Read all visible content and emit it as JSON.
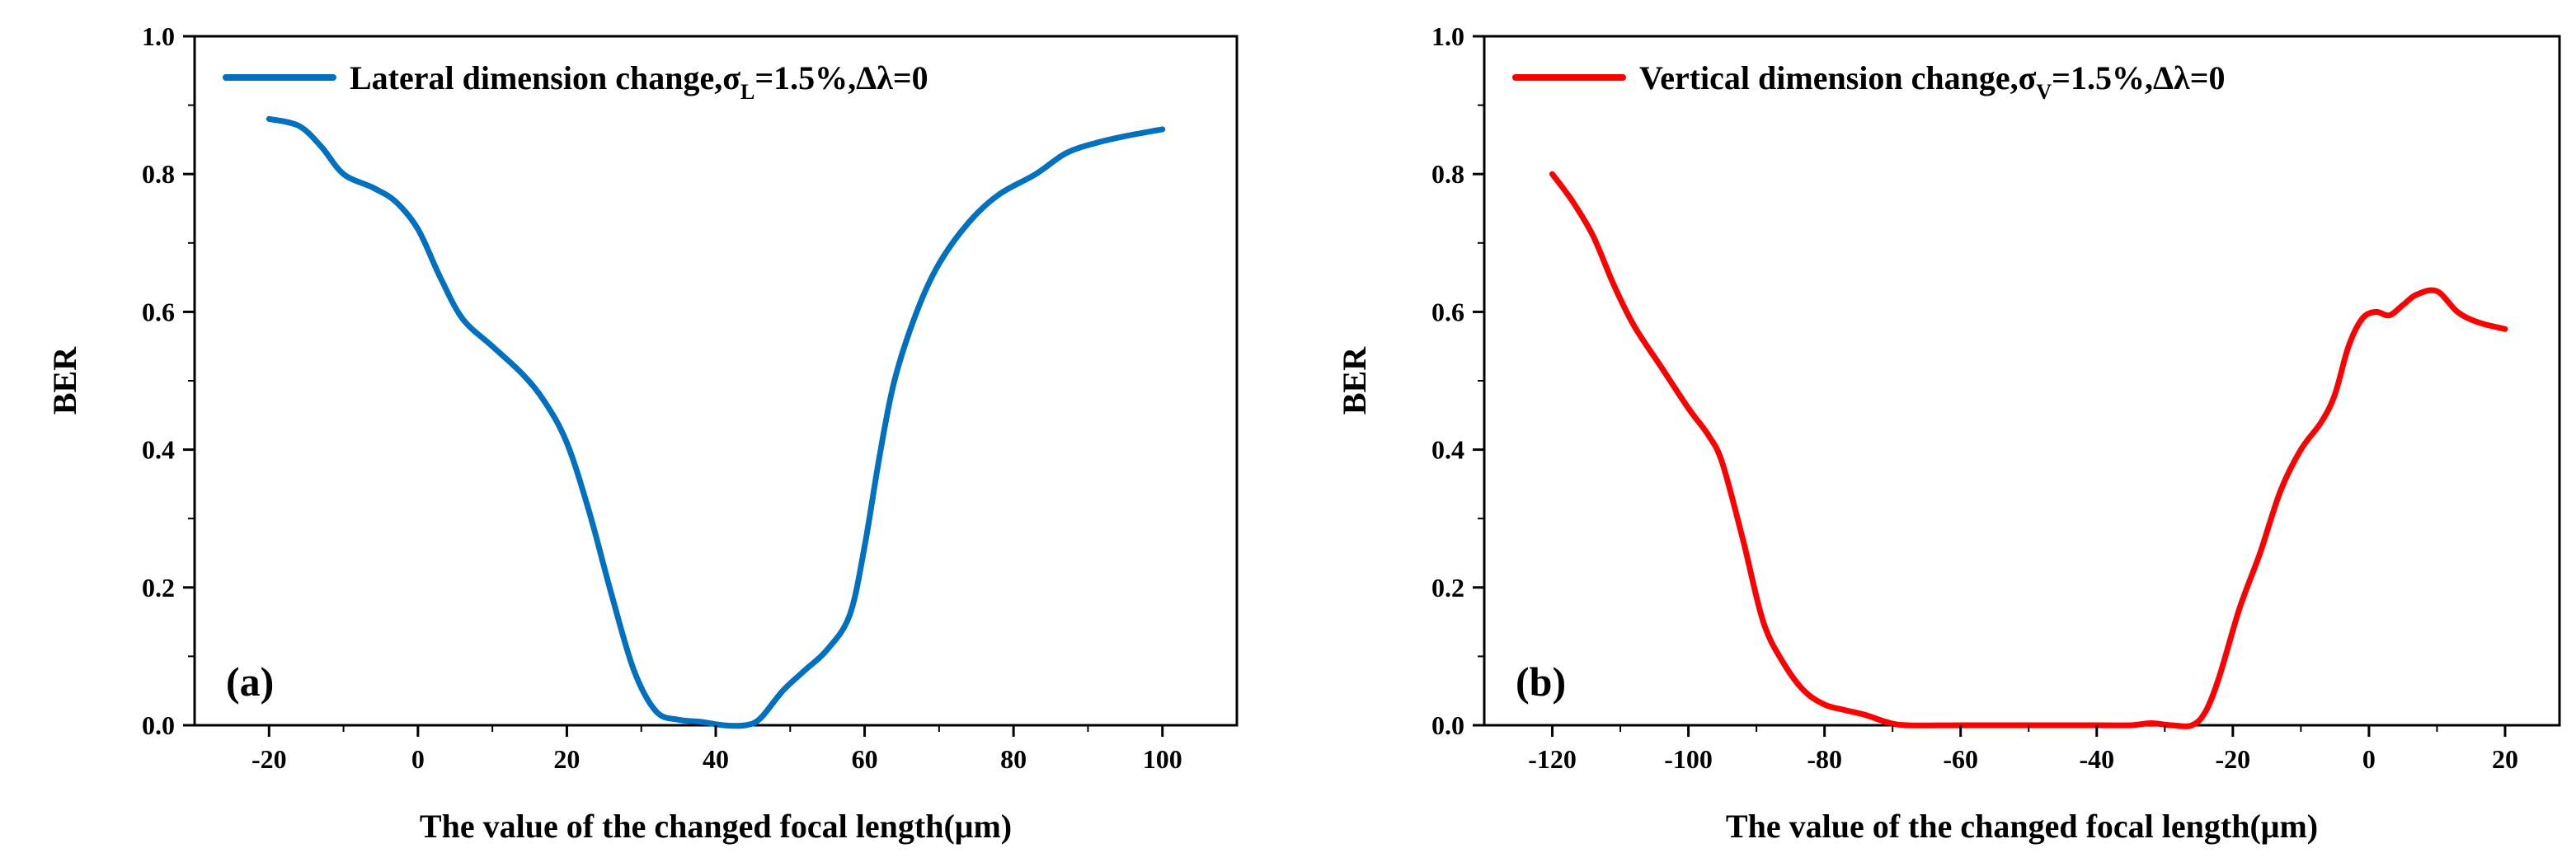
{
  "chart_data": [
    {
      "type": "line",
      "panel_label": "(a)",
      "xlabel": "The value of the changed focal length(μm)",
      "ylabel": "BER",
      "xlim": [
        -30,
        110
      ],
      "ylim": [
        0,
        1.0
      ],
      "xticks": [
        "-20",
        "0",
        "20",
        "40",
        "60",
        "80",
        "100"
      ],
      "yticks": [
        "0.0",
        "0.2",
        "0.4",
        "0.6",
        "0.8",
        "1.0"
      ],
      "grid": false,
      "legend_position": "top",
      "legend": {
        "prefix": "Lateral dimension change,σ",
        "sub": "L",
        "suffix": "=1.5%,Δλ=0"
      },
      "series": [
        {
          "name": "Lateral dimension change,σL=1.5%,Δλ=0",
          "color": "#0070c0",
          "x": [
            -20,
            -16,
            -13,
            -10,
            -6,
            -3,
            0,
            3,
            6,
            10,
            14,
            17,
            20,
            23,
            26,
            29,
            32,
            35,
            38,
            41,
            44,
            46,
            49,
            52,
            55,
            58,
            60,
            62,
            64,
            67,
            70,
            74,
            78,
            83,
            87,
            91,
            95,
            100
          ],
          "y": [
            0.88,
            0.87,
            0.84,
            0.8,
            0.78,
            0.76,
            0.72,
            0.65,
            0.59,
            0.55,
            0.51,
            0.47,
            0.41,
            0.31,
            0.19,
            0.08,
            0.02,
            0.008,
            0.005,
            0.0,
            0.0,
            0.01,
            0.05,
            0.08,
            0.11,
            0.16,
            0.26,
            0.39,
            0.5,
            0.6,
            0.67,
            0.73,
            0.77,
            0.8,
            0.83,
            0.845,
            0.855,
            0.865
          ]
        }
      ]
    },
    {
      "type": "line",
      "panel_label": "(b)",
      "xlabel": "The value of the changed focal length(μm)",
      "ylabel": "BER",
      "xlim": [
        -130,
        28
      ],
      "ylim": [
        0,
        1.0
      ],
      "xticks": [
        "-120",
        "-100",
        "-80",
        "-60",
        "-40",
        "-20",
        "0",
        "20"
      ],
      "yticks": [
        "0.0",
        "0.2",
        "0.4",
        "0.6",
        "0.8",
        "1.0"
      ],
      "grid": false,
      "legend_position": "top",
      "legend": {
        "prefix": "Vertical dimension change,σ",
        "sub": "V",
        "suffix": "=1.5%,Δλ=0"
      },
      "series": [
        {
          "name": "Vertical dimension change,σV=1.5%,Δλ=0",
          "color": "#ff0000",
          "x": [
            -120,
            -117,
            -114,
            -111,
            -108,
            -104,
            -100,
            -97,
            -95,
            -92,
            -89,
            -86,
            -83,
            -80,
            -77,
            -74,
            -71,
            -68,
            -60,
            -50,
            -40,
            -35,
            -32,
            -29,
            -26,
            -24,
            -22,
            -19,
            -16,
            -13,
            -10,
            -7,
            -5,
            -3,
            -1,
            1,
            3,
            5,
            7,
            10,
            13,
            16,
            20
          ],
          "y": [
            0.8,
            0.76,
            0.71,
            0.64,
            0.58,
            0.52,
            0.46,
            0.42,
            0.38,
            0.27,
            0.15,
            0.09,
            0.05,
            0.03,
            0.022,
            0.015,
            0.005,
            0.0,
            0.0,
            0.0,
            0.0,
            0.0,
            0.003,
            0.0,
            0.0,
            0.02,
            0.07,
            0.17,
            0.25,
            0.34,
            0.4,
            0.44,
            0.48,
            0.55,
            0.59,
            0.6,
            0.595,
            0.61,
            0.625,
            0.63,
            0.6,
            0.585,
            0.575
          ]
        }
      ]
    }
  ]
}
